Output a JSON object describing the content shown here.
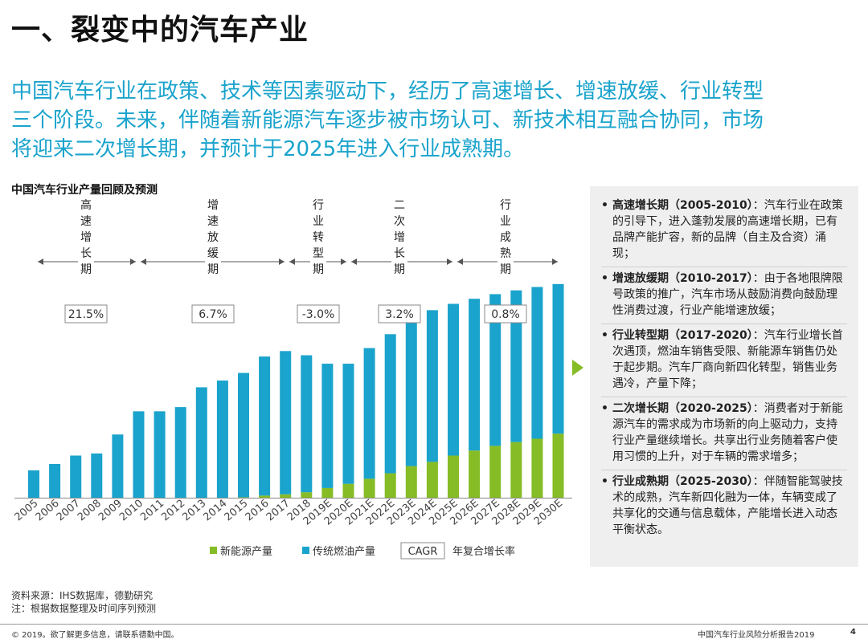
{
  "page": {
    "title": "一、裂变中的汽车产业",
    "lead_lines": [
      "中国汽车行业在政策、技术等因素驱动下，经历了高速增长、增速放缓、行业转型",
      "三个阶段。未来，伴随着新能源汽车逐步被市场认可、新技术相互融合协同，市场",
      "将迎来二次增长期，并预计于2025年进入行业成熟期。"
    ]
  },
  "chart_data": {
    "type": "bar",
    "stacked": true,
    "title": "中国汽车行业产量回顾及预测",
    "categories": [
      "2005",
      "2006",
      "2007",
      "2008",
      "2009",
      "2010",
      "2011",
      "2012",
      "2013",
      "2014",
      "2015",
      "2016",
      "2017",
      "2018",
      "2019E",
      "2020E",
      "2021E",
      "2022E",
      "2023E",
      "2024E",
      "2025E",
      "2026E",
      "2027E",
      "2028E",
      "2029E",
      "2030E"
    ],
    "series": [
      {
        "name": "新能源产量",
        "color": "#86bc25",
        "values": [
          0,
          0,
          0,
          0,
          0,
          0,
          0,
          0,
          0,
          0,
          0.1,
          0.5,
          0.8,
          1.3,
          2.3,
          3.3,
          4.5,
          5.8,
          7.5,
          8.5,
          10,
          11.2,
          12.3,
          13.2,
          14,
          15.2
        ]
      },
      {
        "name": "传统燃油产量",
        "color": "#1aa3cc",
        "values": [
          6.5,
          8,
          10,
          10.5,
          15,
          20.5,
          20.5,
          21.5,
          26.2,
          27.8,
          29.5,
          33,
          34,
          32.5,
          29.5,
          28.5,
          31,
          33,
          35,
          36,
          36,
          36,
          36,
          36,
          36,
          35.5
        ]
      }
    ],
    "legend": {
      "cagr_label": "CAGR",
      "cagr_desc": "年复合增长率",
      "placement": "bottom"
    },
    "phases": [
      {
        "name": "高速增长期",
        "cagr": "21.5%"
      },
      {
        "name": "增速放缓期",
        "cagr": "6.7%"
      },
      {
        "name": "行业转型期",
        "cagr": "-3.0%"
      },
      {
        "name": "二次增长期",
        "cagr": "3.2%"
      },
      {
        "name": "行业成熟期",
        "cagr": "0.8%"
      }
    ]
  },
  "sidebar": {
    "bullet": "•",
    "items": [
      {
        "head": "高速增长期（2005-2010）",
        "body": "：汽车行业在政策的引导下，进入蓬勃发展的高速增长期，已有品牌产能扩容，新的品牌（自主及合资）涌现；"
      },
      {
        "head": "增速放缓期（2010-2017）",
        "body": "：由于各地限牌限号政策的推广，汽车市场从鼓励消费向鼓励理性消费过渡，行业产能增速放缓；"
      },
      {
        "head": "行业转型期（2017-2020）",
        "body": "：汽车行业增长首次遇顶，燃油车销售受限、新能源车销售仍处于起步期。汽车厂商向新四化转型，销售业务遇冷，产量下降；"
      },
      {
        "head": "二次增长期（2020-2025）",
        "body": "：消费者对于新能源汽车的需求成为市场新的向上驱动力，支持行业产量继续增长。共享出行业务随着客户使用习惯的上升，对于车辆的需求增多；"
      },
      {
        "head": "行业成熟期（2025-2030）",
        "body": "：伴随智能驾驶技术的成熟，汽车新四化融为一体，车辆变成了共享化的交通与信息载体，产能增长进入动态平衡状态。"
      }
    ]
  },
  "notes": {
    "source": "资料来源：IHS数据库，德勤研究",
    "note": "注：根据数据整理及时间序列预测"
  },
  "footer": {
    "left": "© 2019。欲了解更多信息，请联系德勤中国。",
    "right": "中国汽车行业风险分析报告2019",
    "page_number": "4"
  }
}
